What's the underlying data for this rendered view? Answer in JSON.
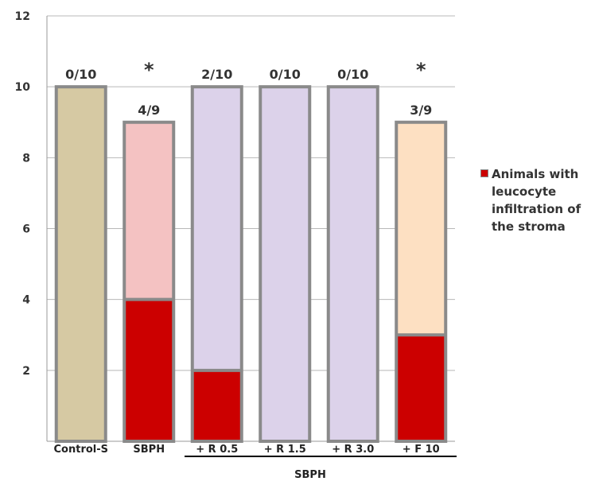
{
  "chart_data": {
    "type": "bar",
    "title": "",
    "xlabel": "",
    "ylabel": "",
    "ylim": [
      0,
      12
    ],
    "y_ticks": [
      2,
      4,
      6,
      8,
      10,
      12
    ],
    "y_tick_labels": [
      "2",
      "4",
      "6",
      "8",
      "10",
      "12"
    ],
    "categories": [
      "Control-S",
      "SBPH",
      "+ R 0.5",
      "+ R 1.5",
      "+ R 3.0",
      "+ F 10"
    ],
    "totals": [
      10,
      9,
      10,
      10,
      10,
      9
    ],
    "series": [
      {
        "name": "Animals with leucocyte infiltration of the stroma",
        "values": [
          0,
          4,
          2,
          0,
          0,
          3
        ],
        "color": "#cc0000"
      }
    ],
    "bar_colors": [
      "#d6c9a3",
      "#f4c2c2",
      "#dcd2ea",
      "#dcd2ea",
      "#dcd2ea",
      "#fde0c2"
    ],
    "bar_labels": [
      "0/10",
      "4/9",
      "2/10",
      "0/10",
      "0/10",
      "3/9"
    ],
    "significance_marks": [
      "",
      "*",
      "",
      "",
      "",
      "*"
    ],
    "group_bracket_label": "SBPH",
    "grid": true,
    "legend_position": "right"
  },
  "legend": {
    "label": "Animals with leucocyte infiltration of the stroma"
  }
}
